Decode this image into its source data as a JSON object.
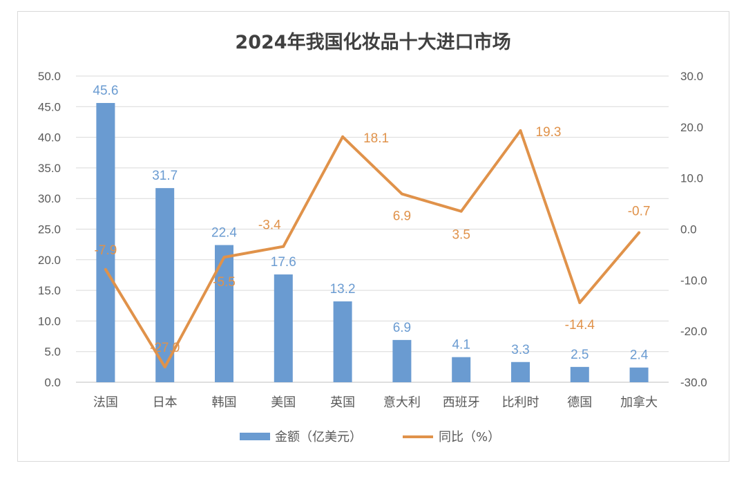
{
  "chart_data": {
    "type": "bar+line",
    "title": "2024年我国化妆品十大进口市场",
    "categories": [
      "法国",
      "日本",
      "韩国",
      "美国",
      "英国",
      "意大利",
      "西班牙",
      "比利时",
      "德国",
      "加拿大"
    ],
    "series": [
      {
        "name": "金额（亿美元）",
        "type": "bar",
        "axis": "left",
        "color": "#6a9bd1",
        "values": [
          45.6,
          31.7,
          22.4,
          17.6,
          13.2,
          6.9,
          4.1,
          3.3,
          2.5,
          2.4
        ],
        "labels": [
          "45.6",
          "31.7",
          "22.4",
          "17.6",
          "13.2",
          "6.9",
          "4.1",
          "3.3",
          "2.5",
          "2.4"
        ]
      },
      {
        "name": "同比（%）",
        "type": "line",
        "axis": "right",
        "color": "#e0924a",
        "values": [
          -7.9,
          -27.0,
          -5.5,
          -3.4,
          18.1,
          6.9,
          3.5,
          19.3,
          -14.4,
          -0.7
        ],
        "labels": [
          "-7.9",
          "-27.0",
          "-5.5",
          "-3.4",
          "18.1",
          "6.9",
          "3.5",
          "19.3",
          "-14.4",
          "-0.7"
        ]
      }
    ],
    "y_left": {
      "min": 0,
      "max": 50,
      "step": 5,
      "ticks": [
        "0.0",
        "5.0",
        "10.0",
        "15.0",
        "20.0",
        "25.0",
        "30.0",
        "35.0",
        "40.0",
        "45.0",
        "50.0"
      ]
    },
    "y_right": {
      "min": -30,
      "max": 30,
      "step": 10,
      "ticks": [
        "-30.0",
        "-20.0",
        "-10.0",
        "0.0",
        "10.0",
        "20.0",
        "30.0"
      ]
    },
    "grid": true,
    "legend_position": "bottom"
  }
}
